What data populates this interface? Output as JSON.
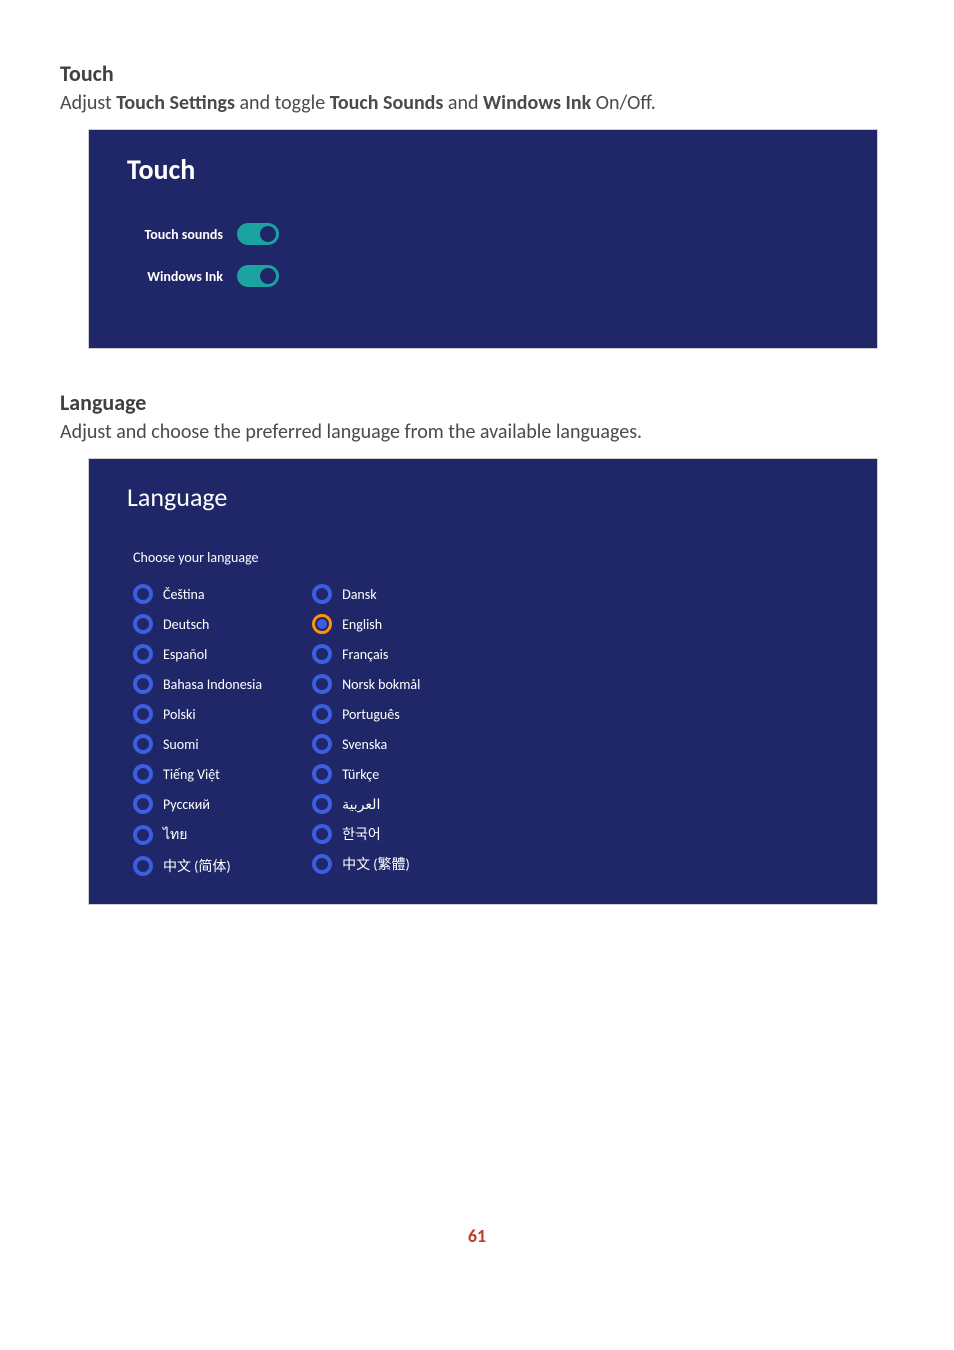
{
  "touch": {
    "heading": "Touch",
    "desc_prefix": "Adjust ",
    "desc_bold1": "Touch Settings",
    "desc_mid": " and toggle ",
    "desc_bold2": "Touch Sounds",
    "desc_mid2": " and ",
    "desc_bold3": "Windows Ink",
    "desc_suffix": " On/Off.",
    "panel_title": "Touch",
    "rows": [
      {
        "label": "Touch sounds",
        "on": true
      },
      {
        "label": "Windows Ink",
        "on": true
      }
    ],
    "colors": {
      "panel_bg": "#1f2768",
      "toggle_bg": "#1aa3a0",
      "toggle_knob": "#1f2768"
    }
  },
  "language": {
    "heading": "Language",
    "desc": "Adjust and choose the preferred language from the available languages.",
    "panel_title": "Language",
    "subtitle": "Choose your language",
    "selected": "English",
    "columns": [
      [
        "Čeština",
        "Deutsch",
        "Español",
        "Bahasa Indonesia",
        "Polski",
        "Suomi",
        "Tiếng Việt",
        "Русский",
        "ไทย",
        "中文 (简体)"
      ],
      [
        "Dansk",
        "English",
        "Français",
        "Norsk bokmål",
        "Português",
        "Svenska",
        "Türkçe",
        "العربية",
        "한국어",
        "中文 (繁體)"
      ]
    ],
    "colors": {
      "radio_fill": "#3b5fe0",
      "radio_selected_ring": "#ff9500"
    }
  },
  "page_number": "61"
}
